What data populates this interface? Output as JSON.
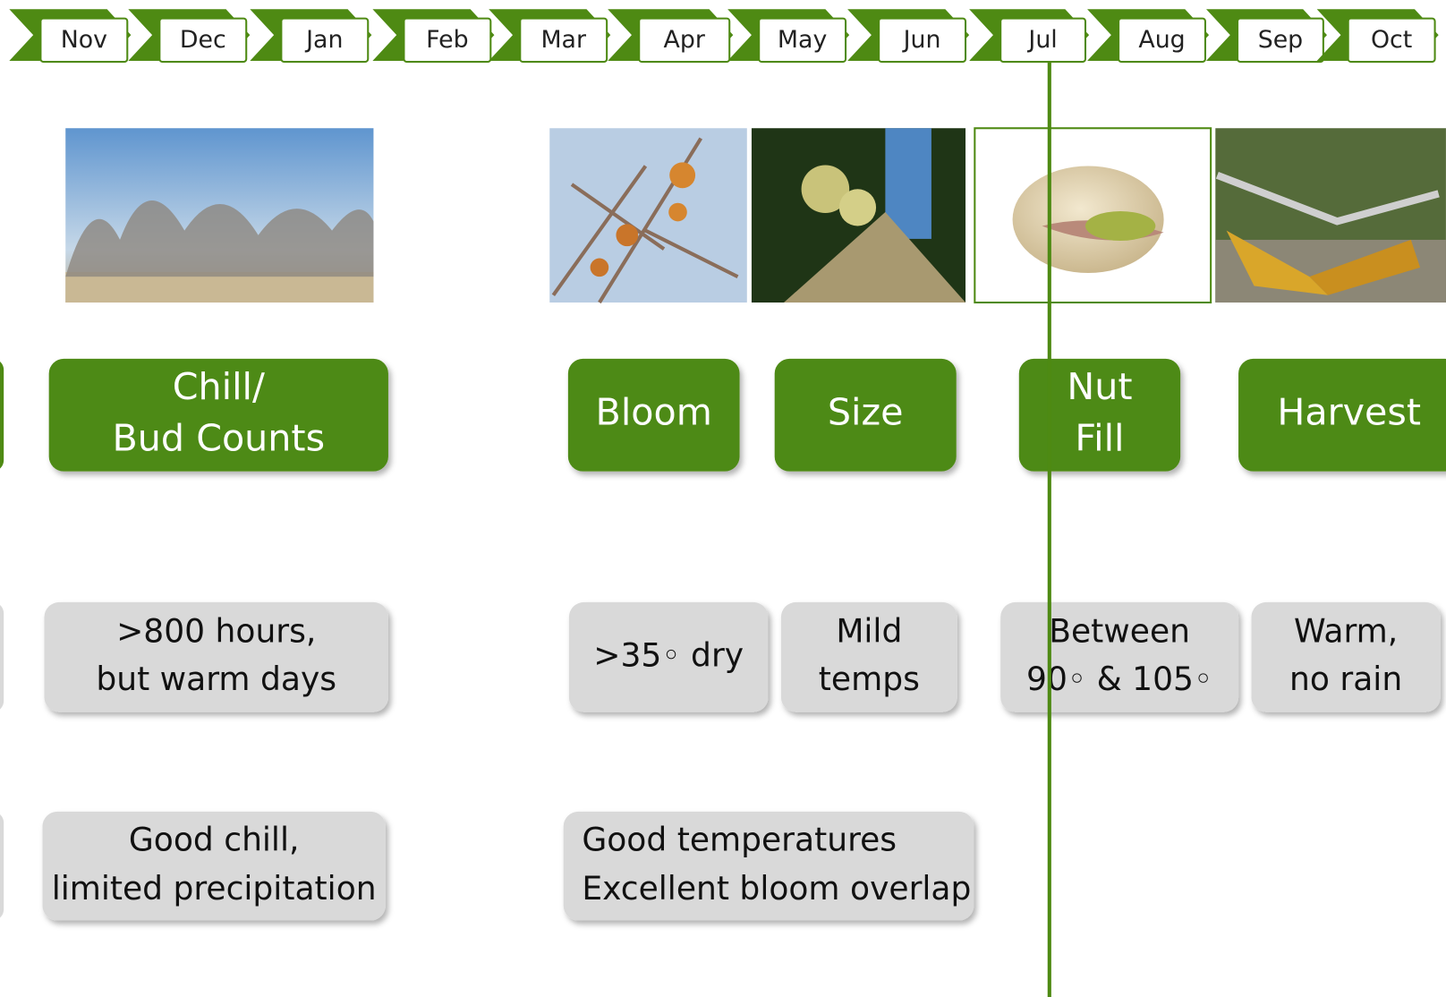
{
  "months": [
    "Nov",
    "Dec",
    "Jan",
    "Feb",
    "Mar",
    "Apr",
    "May",
    "Jun",
    "Jul",
    "Aug",
    "Sep",
    "Oct"
  ],
  "stages": [
    {
      "lines": [
        "Chill/",
        "Bud Counts"
      ]
    },
    {
      "lines": [
        "Bloom"
      ]
    },
    {
      "lines": [
        "Size"
      ]
    },
    {
      "lines": [
        "Nut",
        "Fill"
      ]
    },
    {
      "lines": [
        "Harvest"
      ]
    }
  ],
  "conditions": [
    {
      "lines": [
        ">800 hours,",
        "but warm days"
      ]
    },
    {
      "lines": [
        ">35◦ dry"
      ]
    },
    {
      "lines": [
        "Mild",
        "temps"
      ]
    },
    {
      "lines": [
        "Between",
        "90◦ & 105◦"
      ]
    },
    {
      "lines": [
        "Warm,",
        "no rain"
      ]
    }
  ],
  "notes": [
    {
      "lines": [
        "Good chill,",
        "limited precipitation"
      ]
    },
    {
      "lines": [
        "Good temperatures",
        "Excellent bloom overlap"
      ]
    }
  ]
}
